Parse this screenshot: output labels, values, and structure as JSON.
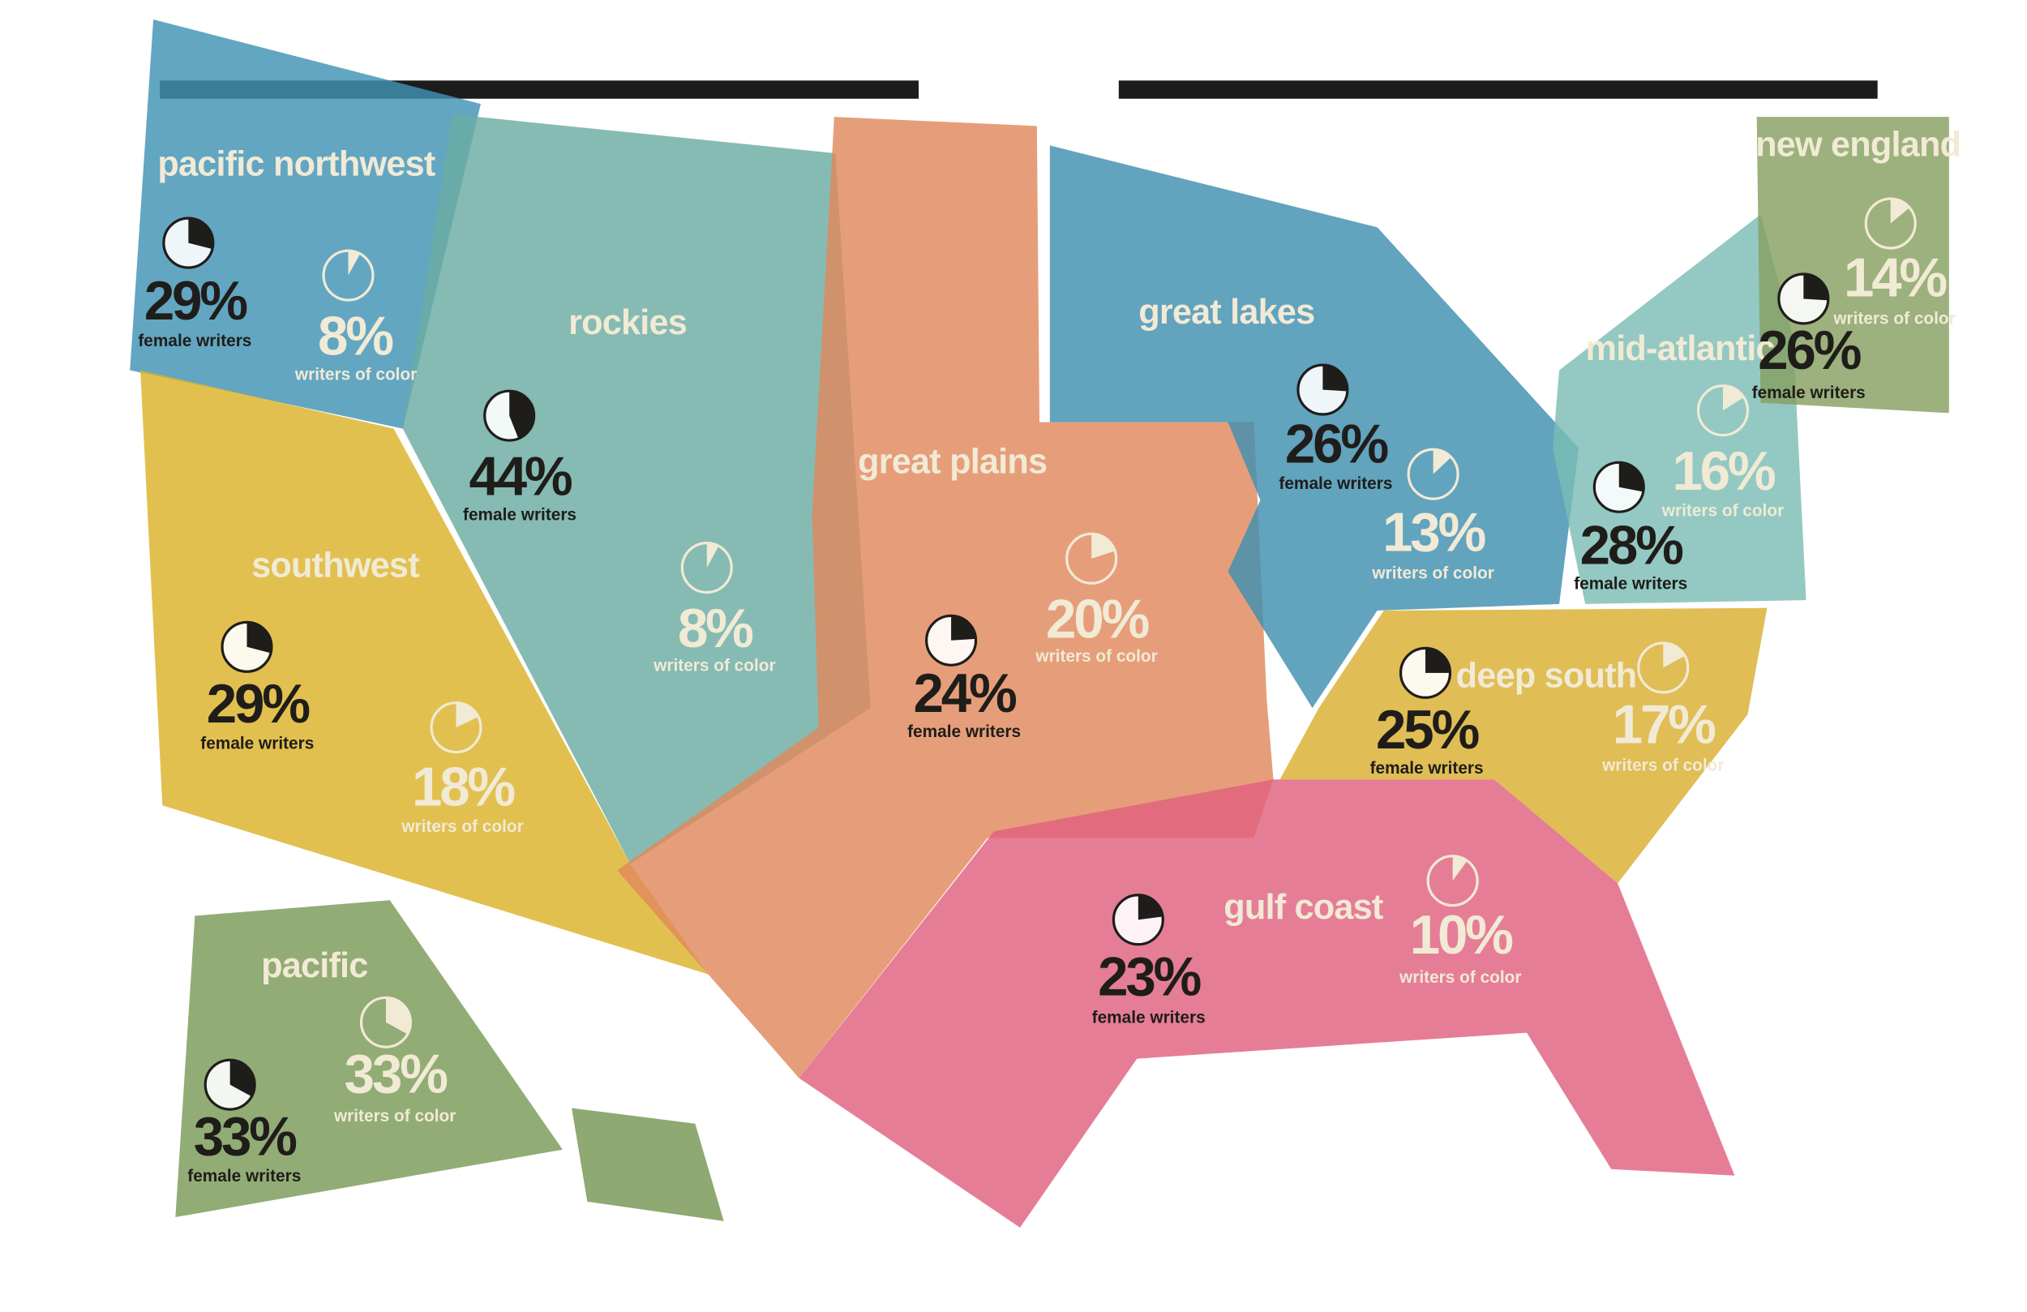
{
  "regions": [
    {
      "name": "pacific northwest",
      "female_writers": {
        "value": 29,
        "label": "29%",
        "caption": "female writers"
      },
      "writers_of_color": {
        "value": 8,
        "label": "8%",
        "caption": "writers of color"
      }
    },
    {
      "name": "rockies",
      "female_writers": {
        "value": 44,
        "label": "44%",
        "caption": "female writers"
      },
      "writers_of_color": {
        "value": 8,
        "label": "8%",
        "caption": "writers of color"
      }
    },
    {
      "name": "southwest",
      "female_writers": {
        "value": 29,
        "label": "29%",
        "caption": "female writers"
      },
      "writers_of_color": {
        "value": 18,
        "label": "18%",
        "caption": "writers of color"
      }
    },
    {
      "name": "great plains",
      "female_writers": {
        "value": 24,
        "label": "24%",
        "caption": "female writers"
      },
      "writers_of_color": {
        "value": 20,
        "label": "20%",
        "caption": "writers of color"
      }
    },
    {
      "name": "great lakes",
      "female_writers": {
        "value": 26,
        "label": "26%",
        "caption": "female writers"
      },
      "writers_of_color": {
        "value": 13,
        "label": "13%",
        "caption": "writers of color"
      }
    },
    {
      "name": "mid-atlantic",
      "female_writers": {
        "value": 28,
        "label": "28%",
        "caption": "female writers"
      },
      "writers_of_color": {
        "value": 16,
        "label": "16%",
        "caption": "writers of color"
      }
    },
    {
      "name": "new england",
      "female_writers": {
        "value": 26,
        "label": "26%",
        "caption": "female writers"
      },
      "writers_of_color": {
        "value": 14,
        "label": "14%",
        "caption": "writers of color"
      }
    },
    {
      "name": "deep south",
      "female_writers": {
        "value": 25,
        "label": "25%",
        "caption": "female writers"
      },
      "writers_of_color": {
        "value": 17,
        "label": "17%",
        "caption": "writers of color"
      }
    },
    {
      "name": "gulf coast",
      "female_writers": {
        "value": 23,
        "label": "23%",
        "caption": "female writers"
      },
      "writers_of_color": {
        "value": 10,
        "label": "10%",
        "caption": "writers of color"
      }
    },
    {
      "name": "pacific",
      "female_writers": {
        "value": 33,
        "label": "33%",
        "caption": "female writers"
      },
      "writers_of_color": {
        "value": 33,
        "label": "33%",
        "caption": "writers of color"
      }
    }
  ]
}
